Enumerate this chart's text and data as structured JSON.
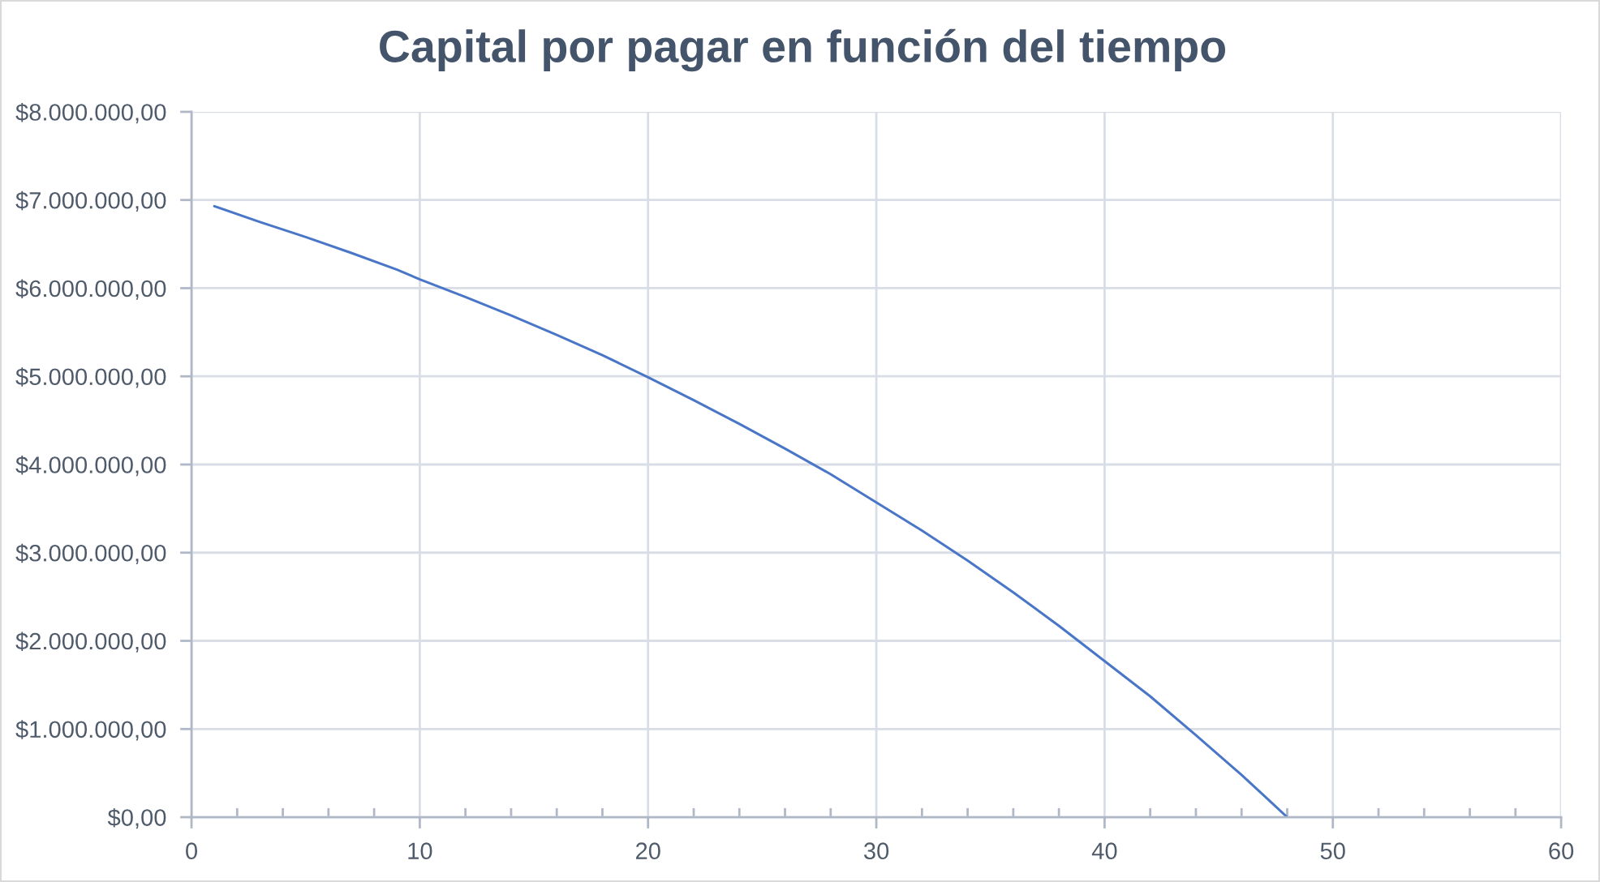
{
  "chart_data": {
    "type": "line",
    "title": "Capital por pagar en función del tiempo",
    "x": [
      1,
      3,
      5,
      7,
      9,
      10,
      12,
      14,
      16,
      18,
      20,
      22,
      24,
      26,
      28,
      30,
      32,
      34,
      36,
      38,
      40,
      42,
      44,
      46,
      47,
      48
    ],
    "series": [
      {
        "color": "#4a76c8",
        "values": [
          6930000,
          6750000,
          6580000,
          6400000,
          6210000,
          6100000,
          5900000,
          5690000,
          5470000,
          5240000,
          4990000,
          4730000,
          4460000,
          4180000,
          3890000,
          3570000,
          3250000,
          2910000,
          2550000,
          2170000,
          1770000,
          1370000,
          930000,
          480000,
          240000,
          0
        ]
      }
    ],
    "xlim": [
      0,
      60
    ],
    "xticks": [
      0,
      {
        "value": 2,
        "label": null
      },
      {
        "value": 4,
        "label": null
      },
      {
        "value": 6,
        "label": null
      },
      {
        "value": 8,
        "label": null
      },
      10,
      {
        "value": 12,
        "label": null
      },
      {
        "value": 14,
        "label": null
      },
      {
        "value": 16,
        "label": null
      },
      {
        "value": 18,
        "label": null
      },
      20,
      {
        "value": 22,
        "label": null
      },
      {
        "value": 24,
        "label": null
      },
      {
        "value": 26,
        "label": null
      },
      {
        "value": 28,
        "label": null
      },
      30,
      {
        "value": 32,
        "label": null
      },
      {
        "value": 34,
        "label": null
      },
      {
        "value": 36,
        "label": null
      },
      {
        "value": 38,
        "label": null
      },
      40,
      {
        "value": 42,
        "label": null
      },
      {
        "value": 44,
        "label": null
      },
      {
        "value": 46,
        "label": null
      },
      {
        "value": 48,
        "label": null
      },
      50,
      {
        "value": 52,
        "label": null
      },
      {
        "value": 54,
        "label": null
      },
      {
        "value": 56,
        "label": null
      },
      {
        "value": 58,
        "label": null
      },
      60
    ],
    "ylim": [
      0,
      8000000
    ],
    "yticks": [
      {
        "value": 0,
        "label": "$0,00"
      },
      {
        "value": 1000000,
        "label": "$1.000.000,00"
      },
      {
        "value": 2000000,
        "label": "$2.000.000,00"
      },
      {
        "value": 3000000,
        "label": "$3.000.000,00"
      },
      {
        "value": 4000000,
        "label": "$4.000.000,00"
      },
      {
        "value": 5000000,
        "label": "$5.000.000,00"
      },
      {
        "value": 6000000,
        "label": "$6.000.000,00"
      },
      {
        "value": 7000000,
        "label": "$7.000.000,00"
      },
      {
        "value": 8000000,
        "label": "$8.000.000,00"
      }
    ],
    "grid": true,
    "line_style": "solid"
  }
}
